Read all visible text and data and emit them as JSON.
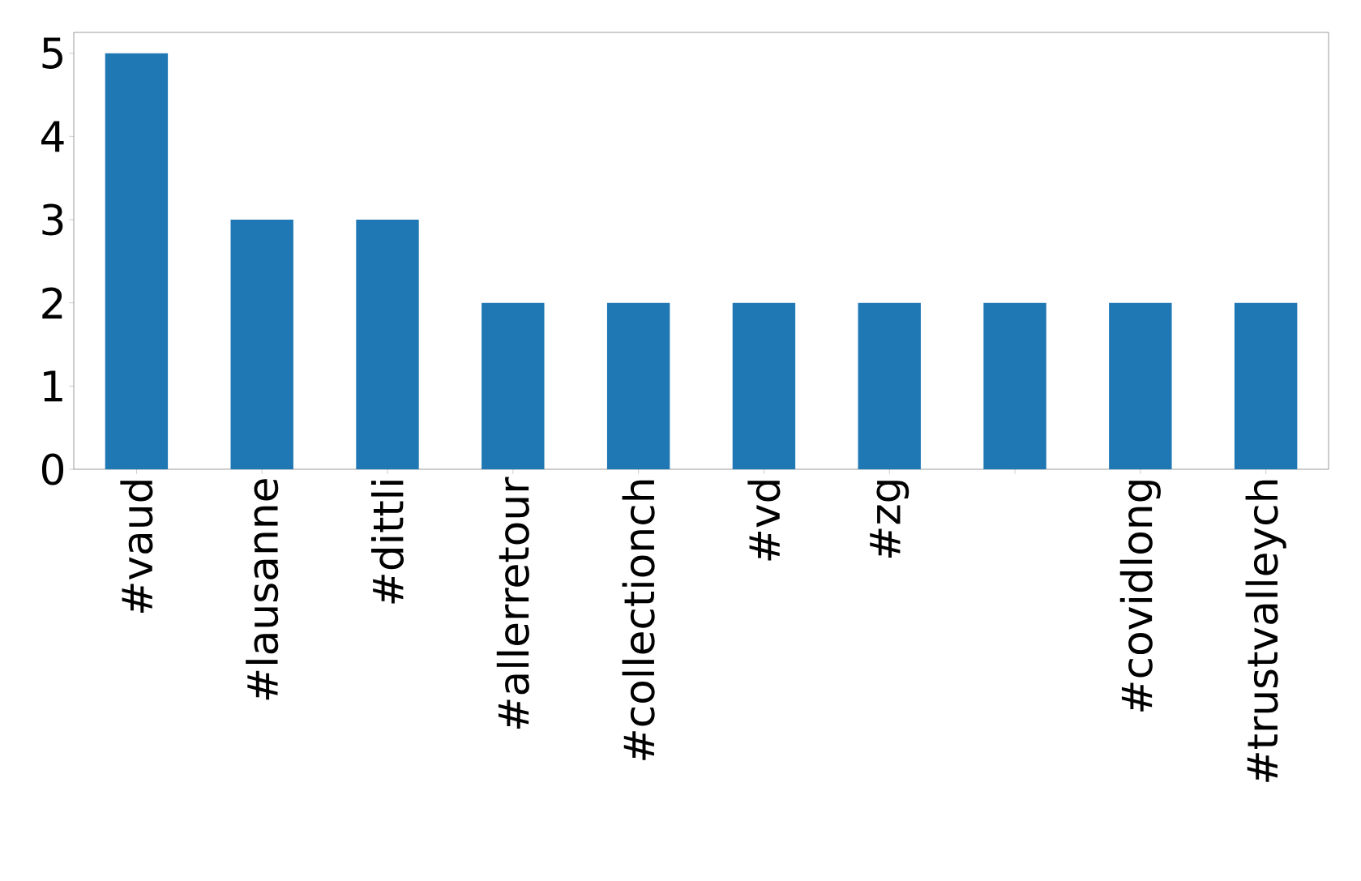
{
  "chart_data": {
    "type": "bar",
    "categories": [
      "#vaud",
      "#lausanne",
      "#dittli",
      "#allerretour",
      "#collectionch",
      "#vd",
      "#zg",
      null,
      "#covidlong",
      "#trustvalleych"
    ],
    "values": [
      5,
      3,
      3,
      2,
      2,
      2,
      2,
      2,
      2,
      2
    ],
    "color": "#1f77b4",
    "ylim": [
      0,
      5.25
    ],
    "yticks": [
      0,
      1,
      2,
      3,
      4,
      5
    ]
  }
}
